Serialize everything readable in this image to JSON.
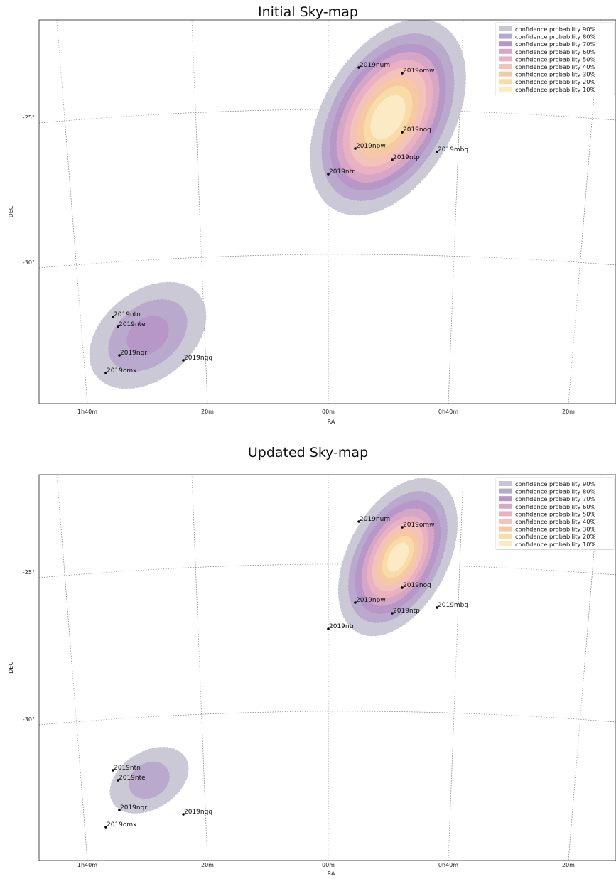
{
  "chart_data": [
    {
      "type": "heatmap",
      "title": "Initial Sky-map",
      "xlabel": "RA",
      "ylabel": "DEC",
      "x_ticks": [
        "1h40m",
        "20m",
        "00m",
        "0h40m",
        "20m"
      ],
      "y_ticks": [
        "-25°",
        "-30°"
      ],
      "legend": {
        "placement": "top-right",
        "entries": [
          {
            "label": "confidence probability 90%",
            "color": "#c9c6d4"
          },
          {
            "label": "confidence probability 80%",
            "color": "#b7a9cc"
          },
          {
            "label": "confidence probability 70%",
            "color": "#b596c6"
          },
          {
            "label": "confidence probability 60%",
            "color": "#d8a6c6"
          },
          {
            "label": "confidence probability 50%",
            "color": "#ebb1c2"
          },
          {
            "label": "confidence probability 40%",
            "color": "#f3c3b9"
          },
          {
            "label": "confidence probability 30%",
            "color": "#f5c9a1"
          },
          {
            "label": "confidence probability 20%",
            "color": "#f8dca8"
          },
          {
            "label": "confidence probability 10%",
            "color": "#fbebc4"
          }
        ]
      },
      "regions": [
        {
          "center": [
            "0h20m",
            "-24.7°"
          ],
          "levels": 9
        },
        {
          "center": [
            "1h26m",
            "-31.9°"
          ],
          "levels": 3
        }
      ],
      "points": [
        "2019num",
        "2019omw",
        "2019noq",
        "2019npw",
        "2019ntp",
        "2019mbq",
        "2019ntr",
        "2019ntn",
        "2019nte",
        "2019nqr",
        "2019nqq",
        "2019omx"
      ]
    },
    {
      "type": "heatmap",
      "title": "Updated Sky-map",
      "xlabel": "RA",
      "ylabel": "DEC",
      "x_ticks": [
        "1h40m",
        "20m",
        "00m",
        "0h40m",
        "20m"
      ],
      "y_ticks": [
        "-25°",
        "-30°"
      ],
      "legend": {
        "placement": "top-right",
        "entries": [
          {
            "label": "confidence probability 90%",
            "color": "#c9c6d4"
          },
          {
            "label": "confidence probability 80%",
            "color": "#b7a9cc"
          },
          {
            "label": "confidence probability 70%",
            "color": "#b596c6"
          },
          {
            "label": "confidence probability 60%",
            "color": "#d8a6c6"
          },
          {
            "label": "confidence probability 50%",
            "color": "#ebb1c2"
          },
          {
            "label": "confidence probability 40%",
            "color": "#f3c3b9"
          },
          {
            "label": "confidence probability 30%",
            "color": "#f5c9a1"
          },
          {
            "label": "confidence probability 20%",
            "color": "#f8dca8"
          },
          {
            "label": "confidence probability 10%",
            "color": "#fbebc4"
          }
        ]
      },
      "regions": [
        {
          "center": [
            "0h20m",
            "-24.7°"
          ],
          "levels": 9
        },
        {
          "center": [
            "1h26m",
            "-32.2°"
          ],
          "levels": 2
        }
      ],
      "points": [
        "2019num",
        "2019omw",
        "2019noq",
        "2019npw",
        "2019ntp",
        "2019mbq",
        "2019ntr",
        "2019ntn",
        "2019nte",
        "2019nqr",
        "2019nqq",
        "2019omx"
      ]
    }
  ]
}
